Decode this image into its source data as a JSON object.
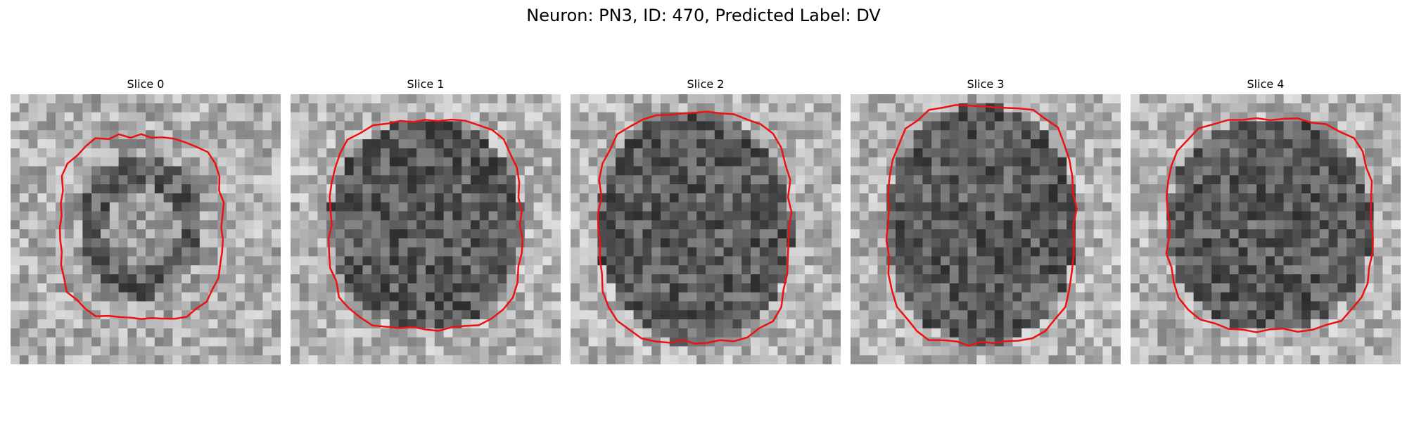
{
  "figure": {
    "title": "Neuron: PN3, ID: 470, Predicted Label: DV"
  },
  "panels": [
    {
      "title": "Slice 0"
    },
    {
      "title": "Slice 1"
    },
    {
      "title": "Slice 2"
    },
    {
      "title": "Slice 3"
    },
    {
      "title": "Slice 4"
    }
  ],
  "colors": {
    "contour": "#ee1111",
    "background": "#ffffff"
  }
}
